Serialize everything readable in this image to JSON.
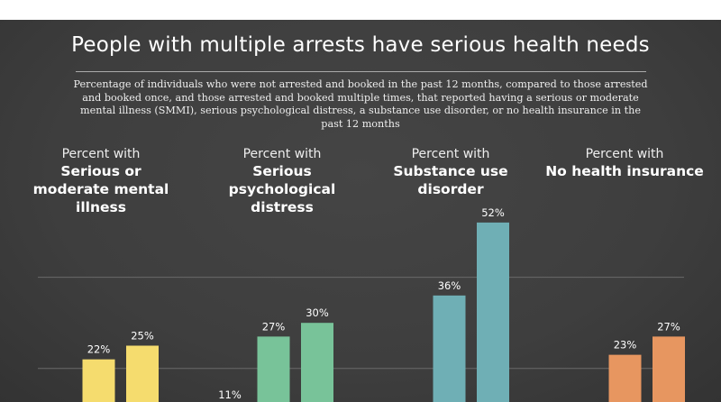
{
  "chart_data": {
    "type": "bar",
    "title": "People with multiple arrests have serious health needs",
    "subtitle": "Percentage of individuals who were not arrested and booked in the past 12 months, compared to those arrested and booked once, and those arrested and booked multiple times, that reported having a serious or moderate mental illness (SMMI), serious psychological distress, a substance use disorder, or no health insurance in the past 12 months",
    "ylim": [
      0,
      55
    ],
    "grid": true,
    "gridlines": [
      20,
      40
    ],
    "groups": [
      {
        "prefix": "Percent with",
        "label": "Serious or moderate mental illness",
        "color": "#f5dc6e",
        "values": [
          null,
          22,
          25
        ],
        "labels": [
          "",
          "22%",
          "25%"
        ]
      },
      {
        "prefix": "Percent with",
        "label": "Serious psychological distress",
        "color": "#78c399",
        "values": [
          11,
          27,
          30
        ],
        "labels": [
          "11%",
          "27%",
          "30%"
        ]
      },
      {
        "prefix": "Percent with",
        "label": "Substance use disorder",
        "color": "#6fafb5",
        "values": [
          null,
          36,
          52
        ],
        "labels": [
          "",
          "36%",
          "52%"
        ]
      },
      {
        "prefix": "Percent with",
        "label": "No health insurance",
        "color": "#e79660",
        "values": [
          null,
          23,
          27
        ],
        "labels": [
          "",
          "23%",
          "27%"
        ]
      }
    ]
  }
}
